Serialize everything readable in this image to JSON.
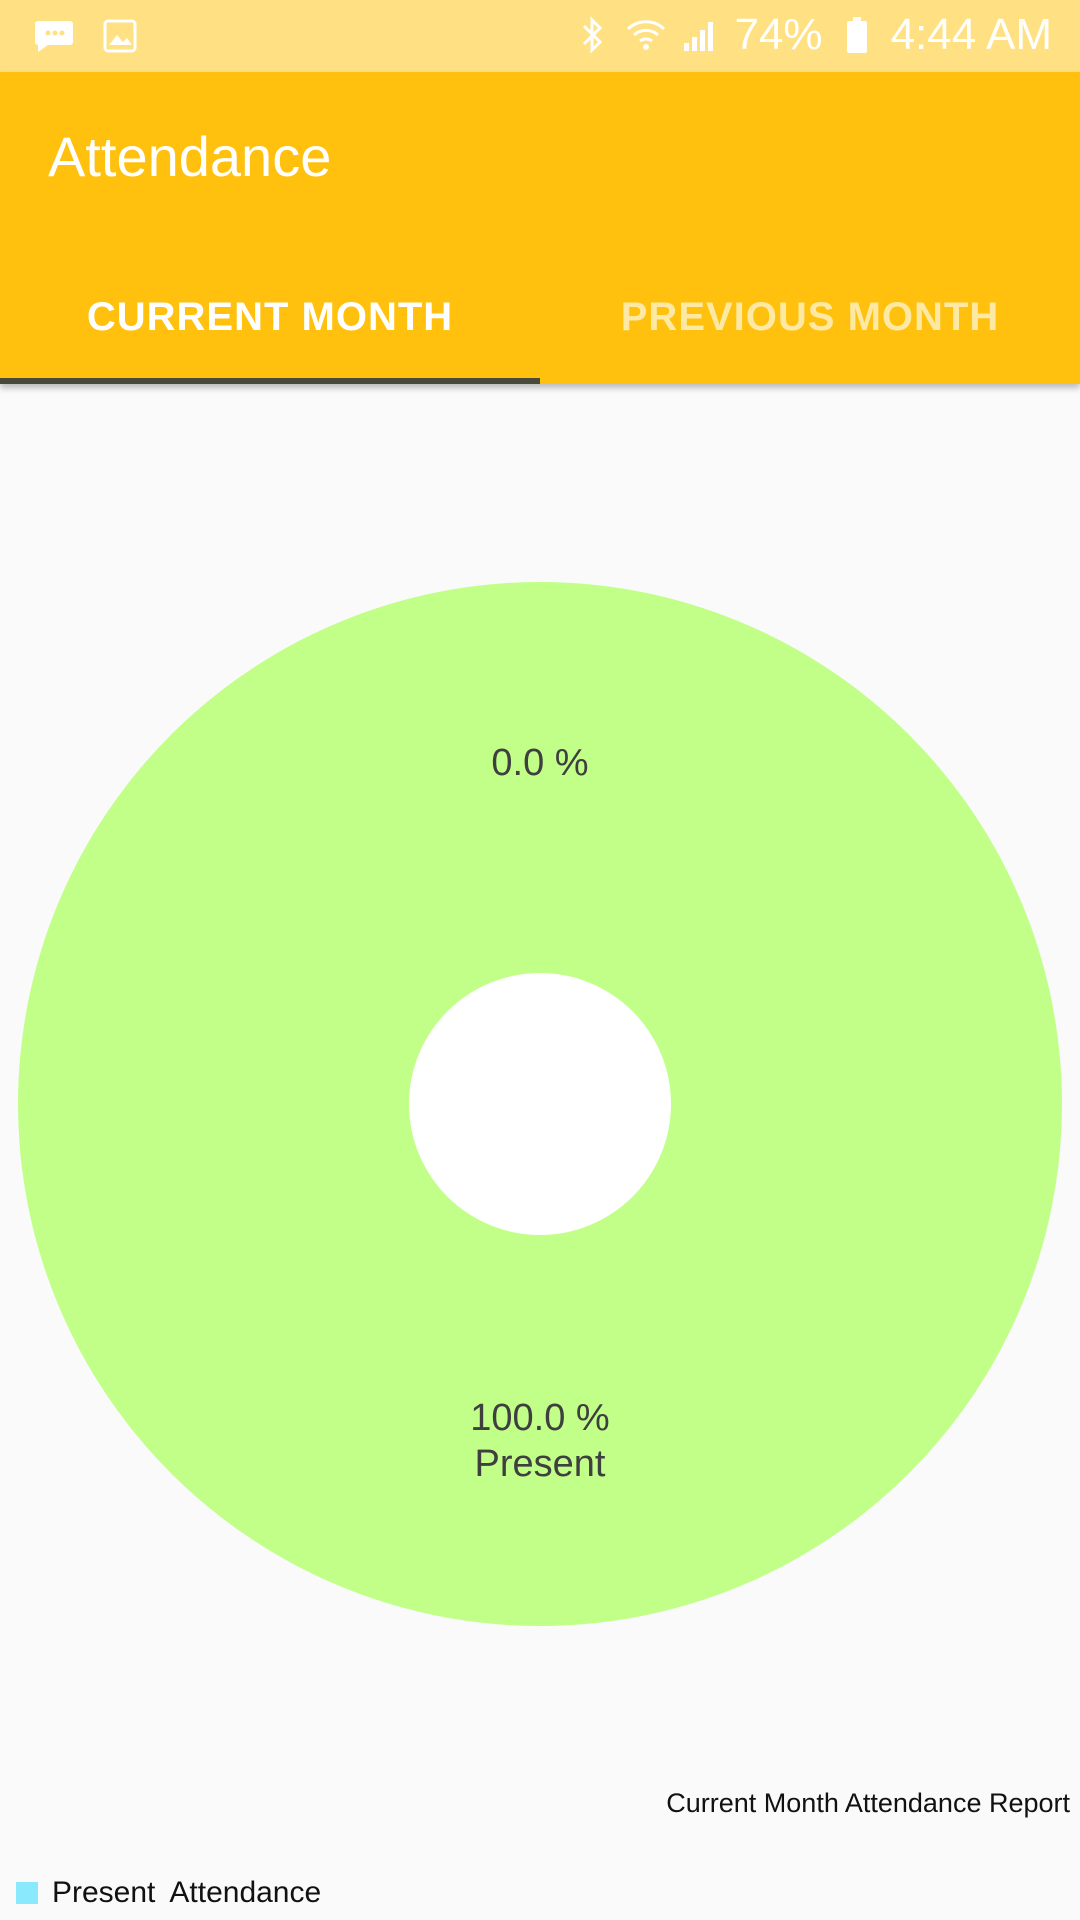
{
  "status_bar": {
    "battery": "74%",
    "time": "4:44 AM",
    "icons": [
      "chat-bubble-icon",
      "image-icon",
      "bluetooth-icon",
      "wifi-icon",
      "cellular-signal-icon",
      "battery-icon"
    ]
  },
  "app_bar": {
    "title": "Attendance",
    "tabs": [
      {
        "label": "CURRENT MONTH",
        "active": true
      },
      {
        "label": "PREVIOUS MONTH",
        "active": false
      }
    ]
  },
  "colors": {
    "status_bar": "#ffe082",
    "app_bar": "#ffc10e",
    "slice_present": "#c1ff88",
    "legend_present": "#8be9fd",
    "hole": "#ffffff"
  },
  "chart_data": {
    "type": "pie",
    "description": "Current Month Attendance Report",
    "hole": true,
    "slices": [
      {
        "label": "Present",
        "value": 100.0,
        "percent_label": "100.0 %"
      },
      {
        "label": "",
        "value": 0.0,
        "percent_label": "0.0 %"
      }
    ],
    "legend": [
      {
        "label": "Present",
        "color": "#8be9fd"
      },
      {
        "label": "Attendance",
        "color": ""
      }
    ]
  }
}
